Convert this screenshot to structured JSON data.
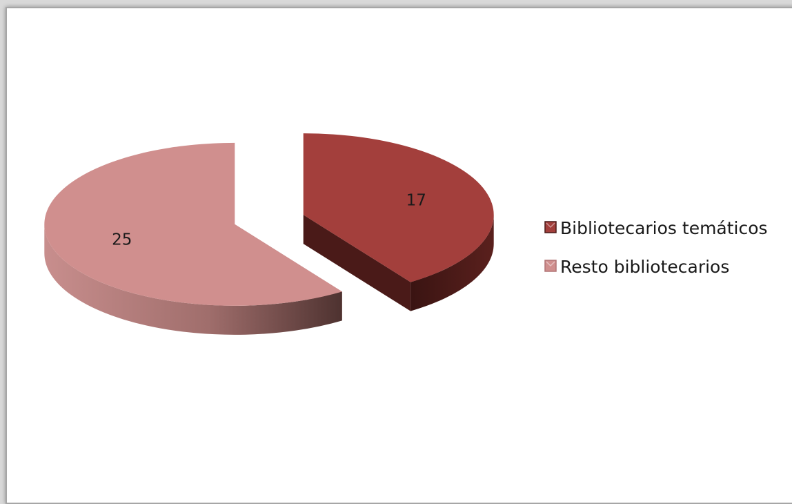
{
  "chart_data": {
    "type": "pie",
    "style": "3d-exploded",
    "categories": [
      "Bibliotecarios temáticos",
      "Resto bibliotecarios"
    ],
    "values": [
      17,
      25
    ],
    "colors": [
      "#a33f3c",
      "#d08f8e"
    ],
    "side_colors": [
      "#4a1a18",
      "#b07475"
    ],
    "title": "",
    "legend_position": "right",
    "data_labels": true
  }
}
